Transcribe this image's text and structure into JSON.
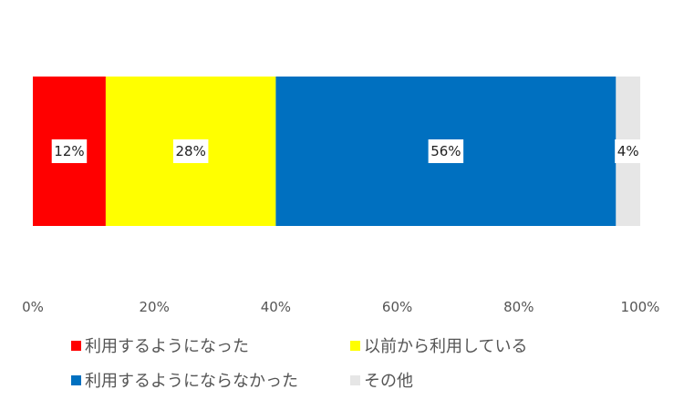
{
  "chart_data": {
    "type": "bar",
    "orientation": "horizontal",
    "stacked": true,
    "xlim": [
      0,
      100
    ],
    "ticks": [
      "0%",
      "20%",
      "40%",
      "60%",
      "80%",
      "100%"
    ],
    "grid": false,
    "legend_position": "bottom",
    "series": [
      {
        "name": "利用するようになった",
        "value": 12,
        "label": "12%",
        "color": "#ff0000"
      },
      {
        "name": "以前から利用している",
        "value": 28,
        "label": "28%",
        "color": "#ffff00"
      },
      {
        "name": "利用するようにならなかった",
        "value": 56,
        "label": "56%",
        "color": "#0070c0"
      },
      {
        "name": "その他",
        "value": 4,
        "label": "4%",
        "color": "#e6e6e6"
      }
    ]
  }
}
